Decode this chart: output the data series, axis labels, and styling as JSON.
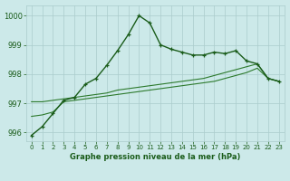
{
  "title": "Graphe pression niveau de la mer (hPa)",
  "bg_color": "#cce9e9",
  "grid_color": "#aacccc",
  "line_color_main": "#1a5c1a",
  "line_color_flat": "#2d7a2d",
  "xlim": [
    -0.5,
    23.5
  ],
  "ylim": [
    995.7,
    1000.35
  ],
  "yticks": [
    996,
    997,
    998,
    999,
    1000
  ],
  "xticks": [
    0,
    1,
    2,
    3,
    4,
    5,
    6,
    7,
    8,
    9,
    10,
    11,
    12,
    13,
    14,
    15,
    16,
    17,
    18,
    19,
    20,
    21,
    22,
    23
  ],
  "main_line": [
    995.9,
    996.2,
    996.65,
    997.1,
    997.2,
    997.65,
    997.85,
    998.3,
    998.8,
    999.35,
    1000.0,
    999.75,
    999.0,
    998.85,
    998.75,
    998.65,
    998.65,
    998.75,
    998.7,
    998.8,
    998.45,
    998.35,
    997.85,
    997.75
  ],
  "flat_line1": [
    997.05,
    997.05,
    997.1,
    997.15,
    997.2,
    997.25,
    997.3,
    997.35,
    997.45,
    997.5,
    997.55,
    997.6,
    997.65,
    997.7,
    997.75,
    997.8,
    997.85,
    997.95,
    998.05,
    998.15,
    998.25,
    998.35,
    997.85,
    997.75
  ],
  "flat_line2": [
    996.55,
    996.6,
    996.7,
    997.05,
    997.1,
    997.15,
    997.2,
    997.25,
    997.3,
    997.35,
    997.4,
    997.45,
    997.5,
    997.55,
    997.6,
    997.65,
    997.7,
    997.75,
    997.85,
    997.95,
    998.05,
    998.2,
    997.85,
    997.75
  ]
}
